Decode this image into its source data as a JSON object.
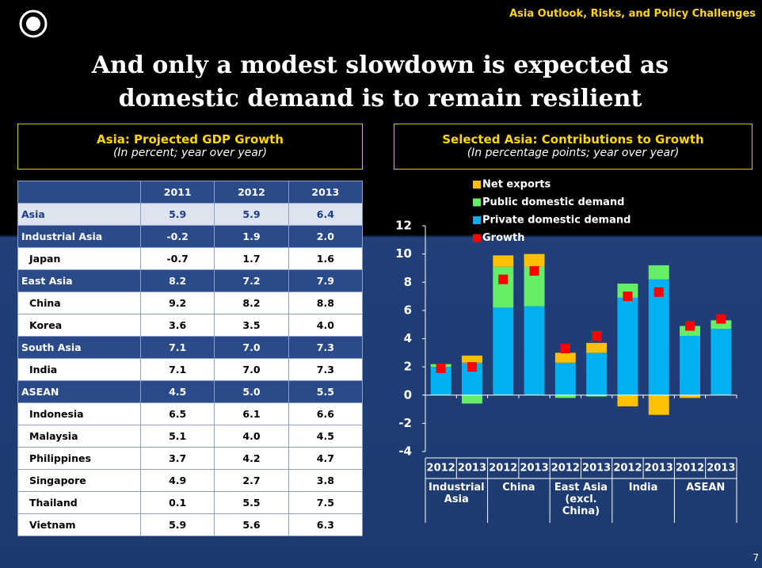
{
  "header": {
    "tag": "Asia Outlook, Risks, and Policy Challenges",
    "title": "And only a modest slowdown is expected as domestic demand is to remain resilient",
    "page": "7"
  },
  "table": {
    "title": "Asia: Projected GDP Growth",
    "subtitle": "(In percent; year over year)",
    "columns": [
      "",
      "2011",
      "2012",
      "2013"
    ],
    "rows": [
      [
        "Asia",
        "5.9",
        "5.9",
        "6.4"
      ],
      [
        "Industrial Asia",
        "-0.2",
        "1.9",
        "2.0"
      ],
      [
        "Japan",
        "-0.7",
        "1.7",
        "1.6"
      ],
      [
        "East Asia",
        "8.2",
        "7.2",
        "7.9"
      ],
      [
        "China",
        "9.2",
        "8.2",
        "8.8"
      ],
      [
        "Korea",
        "3.6",
        "3.5",
        "4.0"
      ],
      [
        "South Asia",
        "7.1",
        "7.0",
        "7.3"
      ],
      [
        "India",
        "7.1",
        "7.0",
        "7.3"
      ],
      [
        "ASEAN",
        "4.5",
        "5.0",
        "5.5"
      ],
      [
        "Indonesia",
        "6.5",
        "6.1",
        "6.6"
      ],
      [
        "Malaysia",
        "5.1",
        "4.0",
        "4.5"
      ],
      [
        "Philippines",
        "3.7",
        "4.2",
        "4.7"
      ],
      [
        "Singapore",
        "4.9",
        "2.7",
        "3.8"
      ],
      [
        "Thailand",
        "0.1",
        "5.5",
        "7.5"
      ],
      [
        "Vietnam",
        "5.9",
        "5.6",
        "6.3"
      ]
    ]
  },
  "chart_data": {
    "type": "bar",
    "stacked": true,
    "title": "Selected Asia: Contributions to Growth",
    "subtitle": "(In percentage points; year over year)",
    "categories": [
      "2012",
      "2013",
      "2012",
      "2013",
      "2012",
      "2013",
      "2012",
      "2013",
      "2012",
      "2013"
    ],
    "groups": [
      "Industrial Asia",
      "China",
      "East Asia (excl. China)",
      "India",
      "ASEAN"
    ],
    "series": [
      {
        "name": "Net exports",
        "color": "#ffc000",
        "values": [
          0,
          0.5,
          0.8,
          0.9,
          0.7,
          0.7,
          -0.8,
          -1.4,
          -0.2,
          0
        ]
      },
      {
        "name": "Public domestic demand",
        "color": "#66ee66",
        "values": [
          0.2,
          -0.6,
          2.9,
          2.8,
          -0.2,
          -0.1,
          1.0,
          1.0,
          0.7,
          0.6
        ]
      },
      {
        "name": "Private domestic demand",
        "color": "#00b0f0",
        "values": [
          2.0,
          2.3,
          6.2,
          6.3,
          2.3,
          3.0,
          6.9,
          8.2,
          4.2,
          4.7
        ]
      },
      {
        "name": "Growth",
        "color": "#ff0000",
        "type": "scatter",
        "values": [
          1.9,
          2.0,
          8.2,
          8.8,
          3.3,
          4.2,
          7.0,
          7.3,
          4.9,
          5.4
        ]
      }
    ],
    "ylim": [
      -4,
      12
    ],
    "yticks": [
      -4,
      -2,
      0,
      2,
      4,
      6,
      8,
      10,
      12
    ],
    "grid": false
  }
}
